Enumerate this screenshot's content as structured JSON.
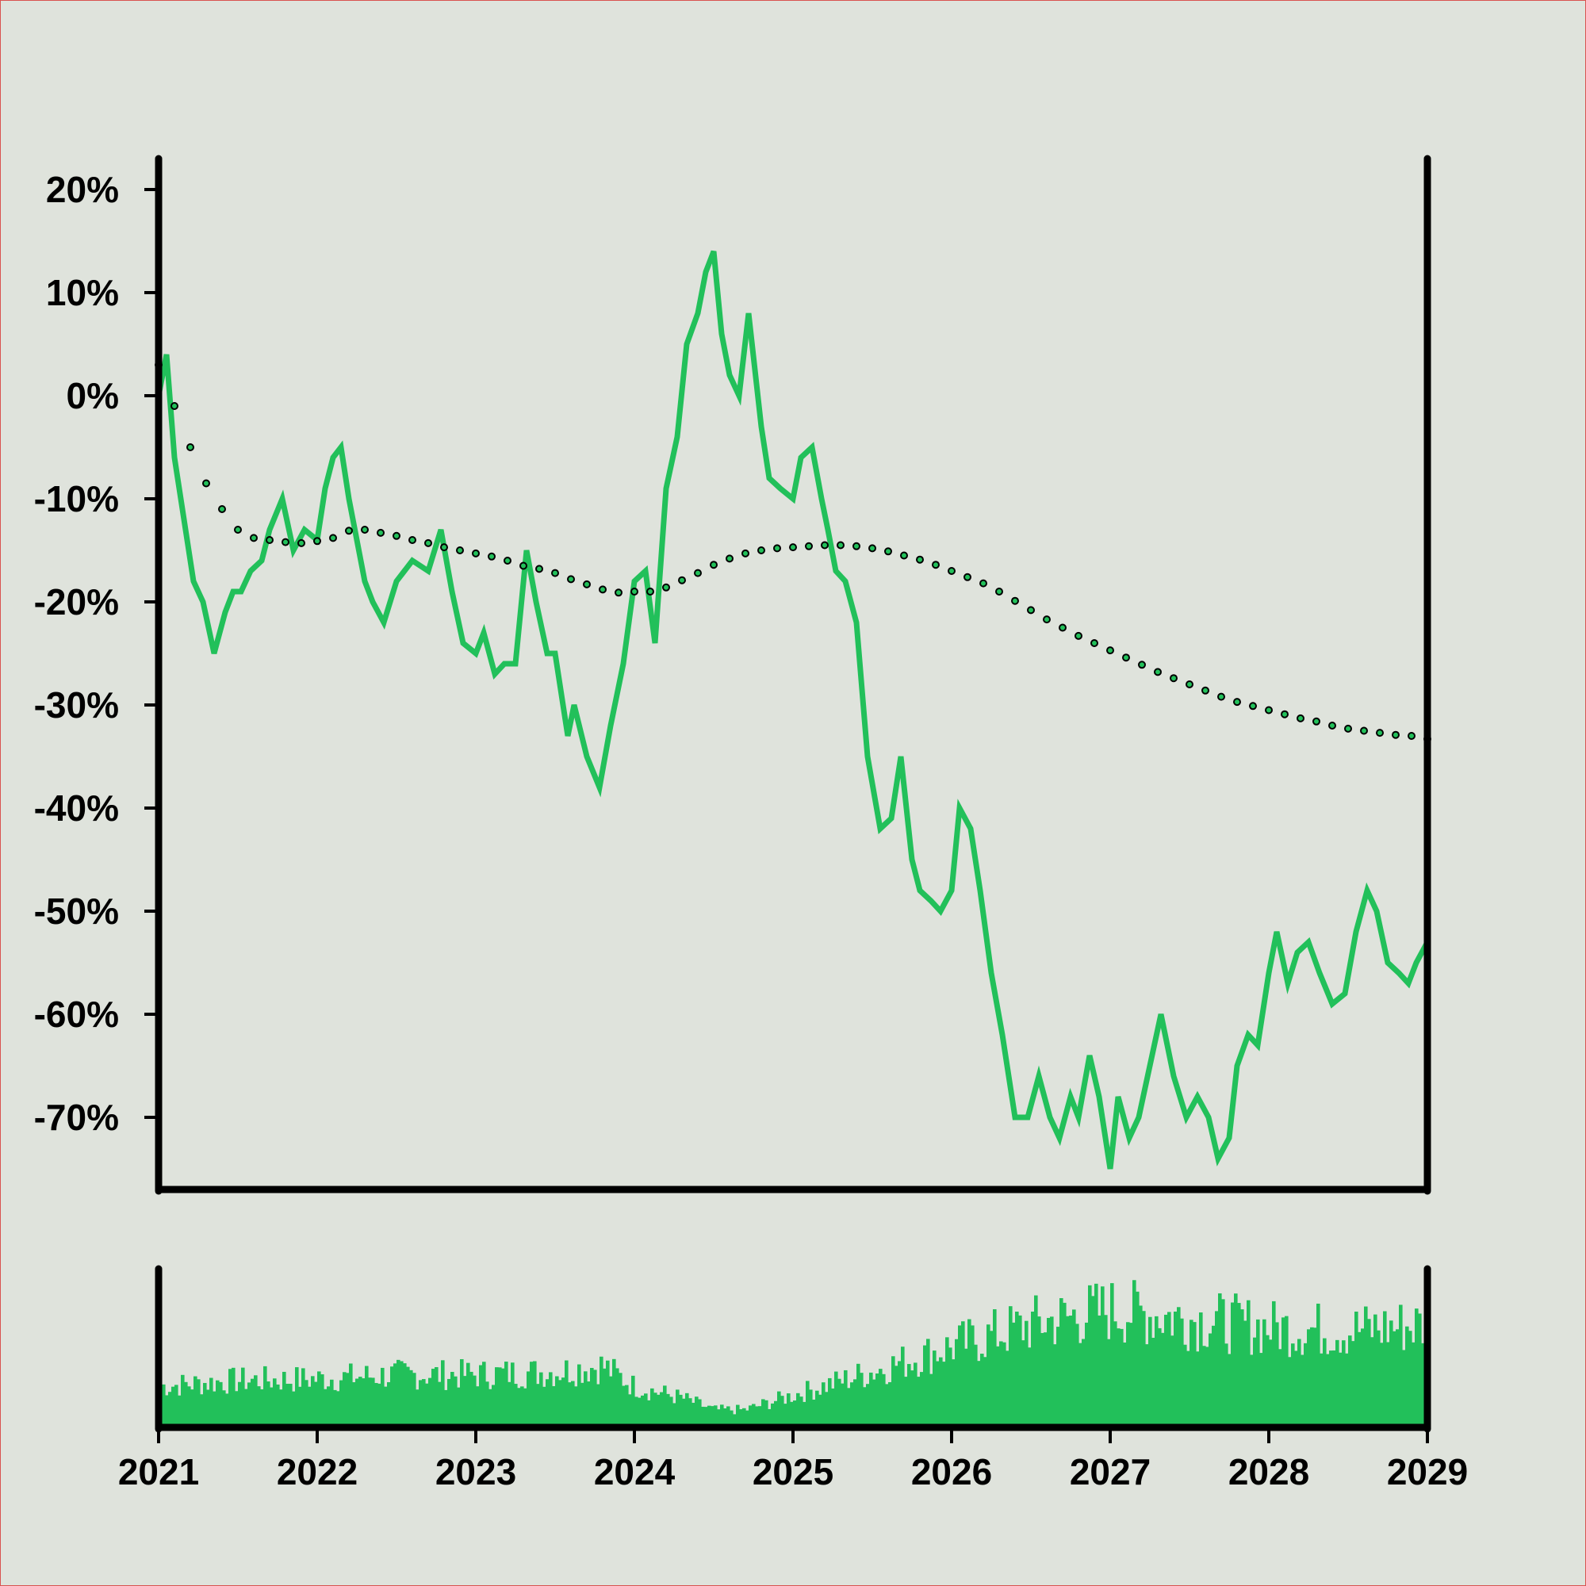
{
  "chart_data": {
    "type": "line",
    "title": "",
    "xlabel": "",
    "ylabel": "",
    "x_range": [
      "2021-01",
      "2029-01"
    ],
    "x_tick_labels": [
      "2021",
      "2022",
      "2023",
      "2024",
      "2025",
      "2026",
      "2027",
      "2028",
      "2029"
    ],
    "x_tick_values": [
      2021,
      2022,
      2023,
      2024,
      2025,
      2026,
      2027,
      2028,
      2029
    ],
    "ylim": [
      -77,
      23
    ],
    "y_tick_labels": [
      "20%",
      "10%",
      "0%",
      "-10%",
      "-20%",
      "-30%",
      "-40%",
      "-50%",
      "-60%",
      "-70%"
    ],
    "y_tick_values": [
      20,
      10,
      0,
      -10,
      -20,
      -30,
      -40,
      -50,
      -60,
      -70
    ],
    "grid": false,
    "legend": "none",
    "series": [
      {
        "style": "solid",
        "color": "#22c05a",
        "x": [
          2021.0,
          2021.05,
          2021.1,
          2021.17,
          2021.22,
          2021.28,
          2021.35,
          2021.42,
          2021.47,
          2021.52,
          2021.58,
          2021.65,
          2021.7,
          2021.78,
          2021.85,
          2021.92,
          2022.0,
          2022.05,
          2022.1,
          2022.15,
          2022.2,
          2022.3,
          2022.35,
          2022.42,
          2022.5,
          2022.6,
          2022.7,
          2022.78,
          2022.85,
          2022.92,
          2023.0,
          2023.05,
          2023.12,
          2023.18,
          2023.25,
          2023.32,
          2023.38,
          2023.45,
          2023.5,
          2023.58,
          2023.62,
          2023.7,
          2023.78,
          2023.85,
          2023.93,
          2024.0,
          2024.07,
          2024.13,
          2024.2,
          2024.27,
          2024.33,
          2024.4,
          2024.45,
          2024.5,
          2024.55,
          2024.6,
          2024.66,
          2024.72,
          2024.8,
          2024.85,
          2024.92,
          2025.0,
          2025.05,
          2025.12,
          2025.18,
          2025.22,
          2025.27,
          2025.33,
          2025.4,
          2025.47,
          2025.55,
          2025.62,
          2025.68,
          2025.75,
          2025.8,
          2025.87,
          2025.93,
          2026.0,
          2026.05,
          2026.12,
          2026.18,
          2026.25,
          2026.32,
          2026.4,
          2026.48,
          2026.55,
          2026.62,
          2026.68,
          2026.75,
          2026.8,
          2026.87,
          2026.93,
          2027.0,
          2027.05,
          2027.12,
          2027.18,
          2027.25,
          2027.32,
          2027.4,
          2027.48,
          2027.55,
          2027.62,
          2027.68,
          2027.75,
          2027.8,
          2027.87,
          2027.93,
          2028.0,
          2028.05,
          2028.12,
          2028.18,
          2028.25,
          2028.32,
          2028.4,
          2028.48,
          2028.55,
          2028.62,
          2028.68,
          2028.75,
          2028.82,
          2028.88,
          2028.93,
          2029.0
        ],
        "y": [
          0,
          4,
          -6,
          -13,
          -18,
          -20,
          -25,
          -21,
          -19,
          -19,
          -17,
          -16,
          -13,
          -10,
          -15,
          -13,
          -14,
          -9,
          -6,
          -5,
          -10,
          -18,
          -20,
          -22,
          -18,
          -16,
          -17,
          -13,
          -19,
          -24,
          -25,
          -23,
          -27,
          -26,
          -26,
          -15,
          -20,
          -25,
          -25,
          -33,
          -30,
          -35,
          -38,
          -32,
          -26,
          -18,
          -17,
          -24,
          -9,
          -4,
          5,
          8,
          12,
          14,
          6,
          2,
          0,
          8,
          -3,
          -8,
          -9,
          -10,
          -6,
          -5,
          -10,
          -13,
          -17,
          -18,
          -22,
          -35,
          -42,
          -41,
          -35,
          -45,
          -48,
          -49,
          -50,
          -48,
          -40,
          -42,
          -48,
          -56,
          -62,
          -70,
          -70,
          -66,
          -70,
          -72,
          -68,
          -70,
          -64,
          -68,
          -75,
          -68,
          -72,
          -70,
          -65,
          -60,
          -66,
          -70,
          -68,
          -70,
          -74,
          -72,
          -65,
          -62,
          -63,
          -56,
          -52,
          -57,
          -54,
          -53,
          -56,
          -59,
          -58,
          -52,
          -48,
          -50,
          -55,
          -56,
          -57,
          -55,
          -53
        ]
      },
      {
        "style": "dotted-markers",
        "color": "#22c05a",
        "x": [
          2021.0,
          2021.1,
          2021.2,
          2021.3,
          2021.4,
          2021.5,
          2021.6,
          2021.7,
          2021.8,
          2021.9,
          2022.0,
          2022.1,
          2022.2,
          2022.3,
          2022.4,
          2022.5,
          2022.6,
          2022.7,
          2022.8,
          2022.9,
          2023.0,
          2023.1,
          2023.2,
          2023.3,
          2023.4,
          2023.5,
          2023.6,
          2023.7,
          2023.8,
          2023.9,
          2024.0,
          2024.1,
          2024.2,
          2024.3,
          2024.4,
          2024.5,
          2024.6,
          2024.7,
          2024.8,
          2024.9,
          2025.0,
          2025.1,
          2025.2,
          2025.3,
          2025.4,
          2025.5,
          2025.6,
          2025.7,
          2025.8,
          2025.9,
          2026.0,
          2026.1,
          2026.2,
          2026.3,
          2026.4,
          2026.5,
          2026.6,
          2026.7,
          2026.8,
          2026.9,
          2027.0,
          2027.1,
          2027.2,
          2027.3,
          2027.4,
          2027.5,
          2027.6,
          2027.7,
          2027.8,
          2027.9,
          2028.0,
          2028.1,
          2028.2,
          2028.3,
          2028.4,
          2028.5,
          2028.6,
          2028.7,
          2028.8,
          2028.9,
          2029.0
        ],
        "y": [
          3,
          -1,
          -5,
          -8.5,
          -11,
          -13,
          -13.8,
          -14.0,
          -14.2,
          -14.3,
          -14.1,
          -13.8,
          -13.1,
          -13.0,
          -13.3,
          -13.6,
          -14.0,
          -14.3,
          -14.7,
          -15.0,
          -15.3,
          -15.6,
          -16.0,
          -16.5,
          -16.8,
          -17.2,
          -17.8,
          -18.3,
          -18.8,
          -19.1,
          -19.0,
          -19.0,
          -18.6,
          -17.9,
          -17.2,
          -16.4,
          -15.8,
          -15.3,
          -15.0,
          -14.8,
          -14.7,
          -14.6,
          -14.5,
          -14.5,
          -14.6,
          -14.8,
          -15.1,
          -15.5,
          -15.9,
          -16.4,
          -17.0,
          -17.6,
          -18.2,
          -19.0,
          -19.9,
          -20.8,
          -21.7,
          -22.5,
          -23.3,
          -24.0,
          -24.7,
          -25.4,
          -26.1,
          -26.8,
          -27.4,
          -28.0,
          -28.6,
          -29.2,
          -29.7,
          -30.1,
          -30.5,
          -30.9,
          -31.3,
          -31.6,
          -32.0,
          -32.3,
          -32.5,
          -32.7,
          -32.9,
          -33.0,
          -33.3
        ]
      }
    ],
    "volume": {
      "type": "bar",
      "color": "#22c05a",
      "y_axis_labels": false,
      "envelope": [
        [
          2021.0,
          0.28
        ],
        [
          2021.5,
          0.32
        ],
        [
          2022.0,
          0.33
        ],
        [
          2022.5,
          0.36
        ],
        [
          2023.0,
          0.36
        ],
        [
          2023.5,
          0.38
        ],
        [
          2023.8,
          0.42
        ],
        [
          2024.0,
          0.28
        ],
        [
          2024.3,
          0.2
        ],
        [
          2024.5,
          0.12
        ],
        [
          2024.7,
          0.12
        ],
        [
          2025.0,
          0.22
        ],
        [
          2025.5,
          0.38
        ],
        [
          2026.0,
          0.55
        ],
        [
          2026.5,
          0.7
        ],
        [
          2027.0,
          0.8
        ],
        [
          2027.5,
          0.74
        ],
        [
          2028.0,
          0.68
        ],
        [
          2028.5,
          0.66
        ],
        [
          2029.0,
          0.7
        ]
      ]
    }
  }
}
